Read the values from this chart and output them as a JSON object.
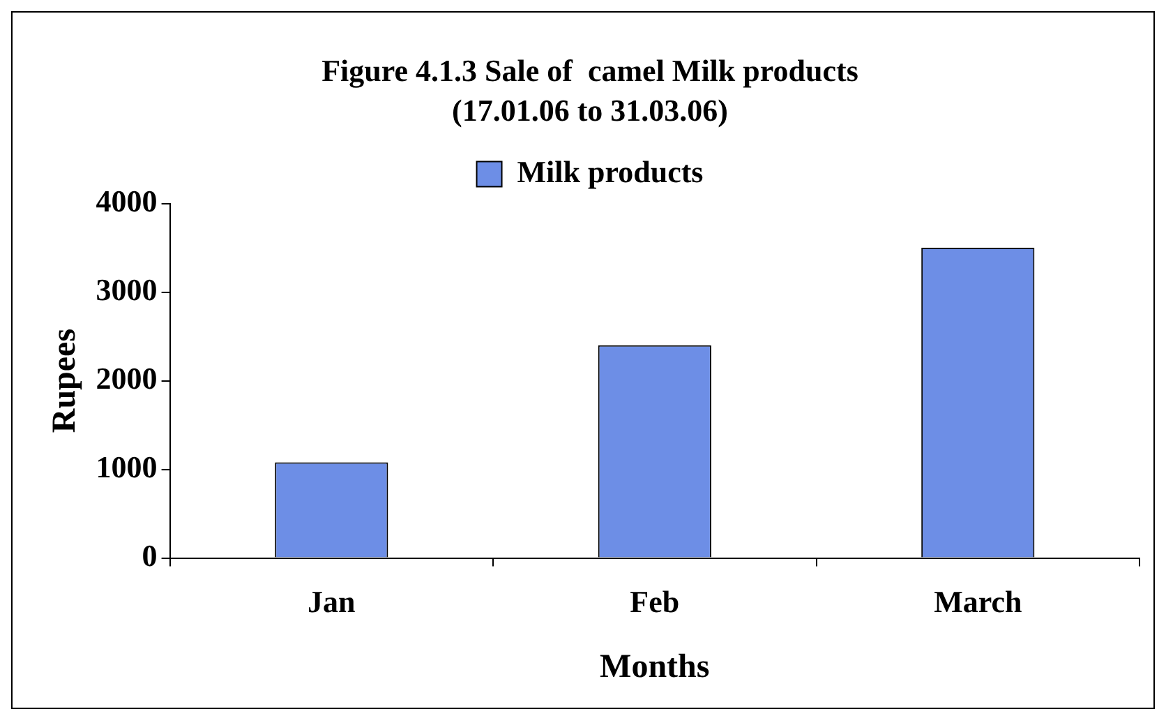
{
  "chart_data": {
    "type": "bar",
    "title": "Figure 4.1.3 Sale of  camel Milk products",
    "subtitle": "(17.01.06 to 31.03.06)",
    "xlabel": "Months",
    "ylabel": "Rupees",
    "categories": [
      "Jan",
      "Feb",
      "March"
    ],
    "series": [
      {
        "name": "Milk products",
        "color": "#6d8ee6",
        "values": [
          1080,
          2400,
          3500
        ]
      }
    ],
    "ylim": [
      0,
      4000
    ],
    "yticks": [
      0,
      1000,
      2000,
      3000,
      4000
    ],
    "grid": false,
    "legend": "top"
  }
}
